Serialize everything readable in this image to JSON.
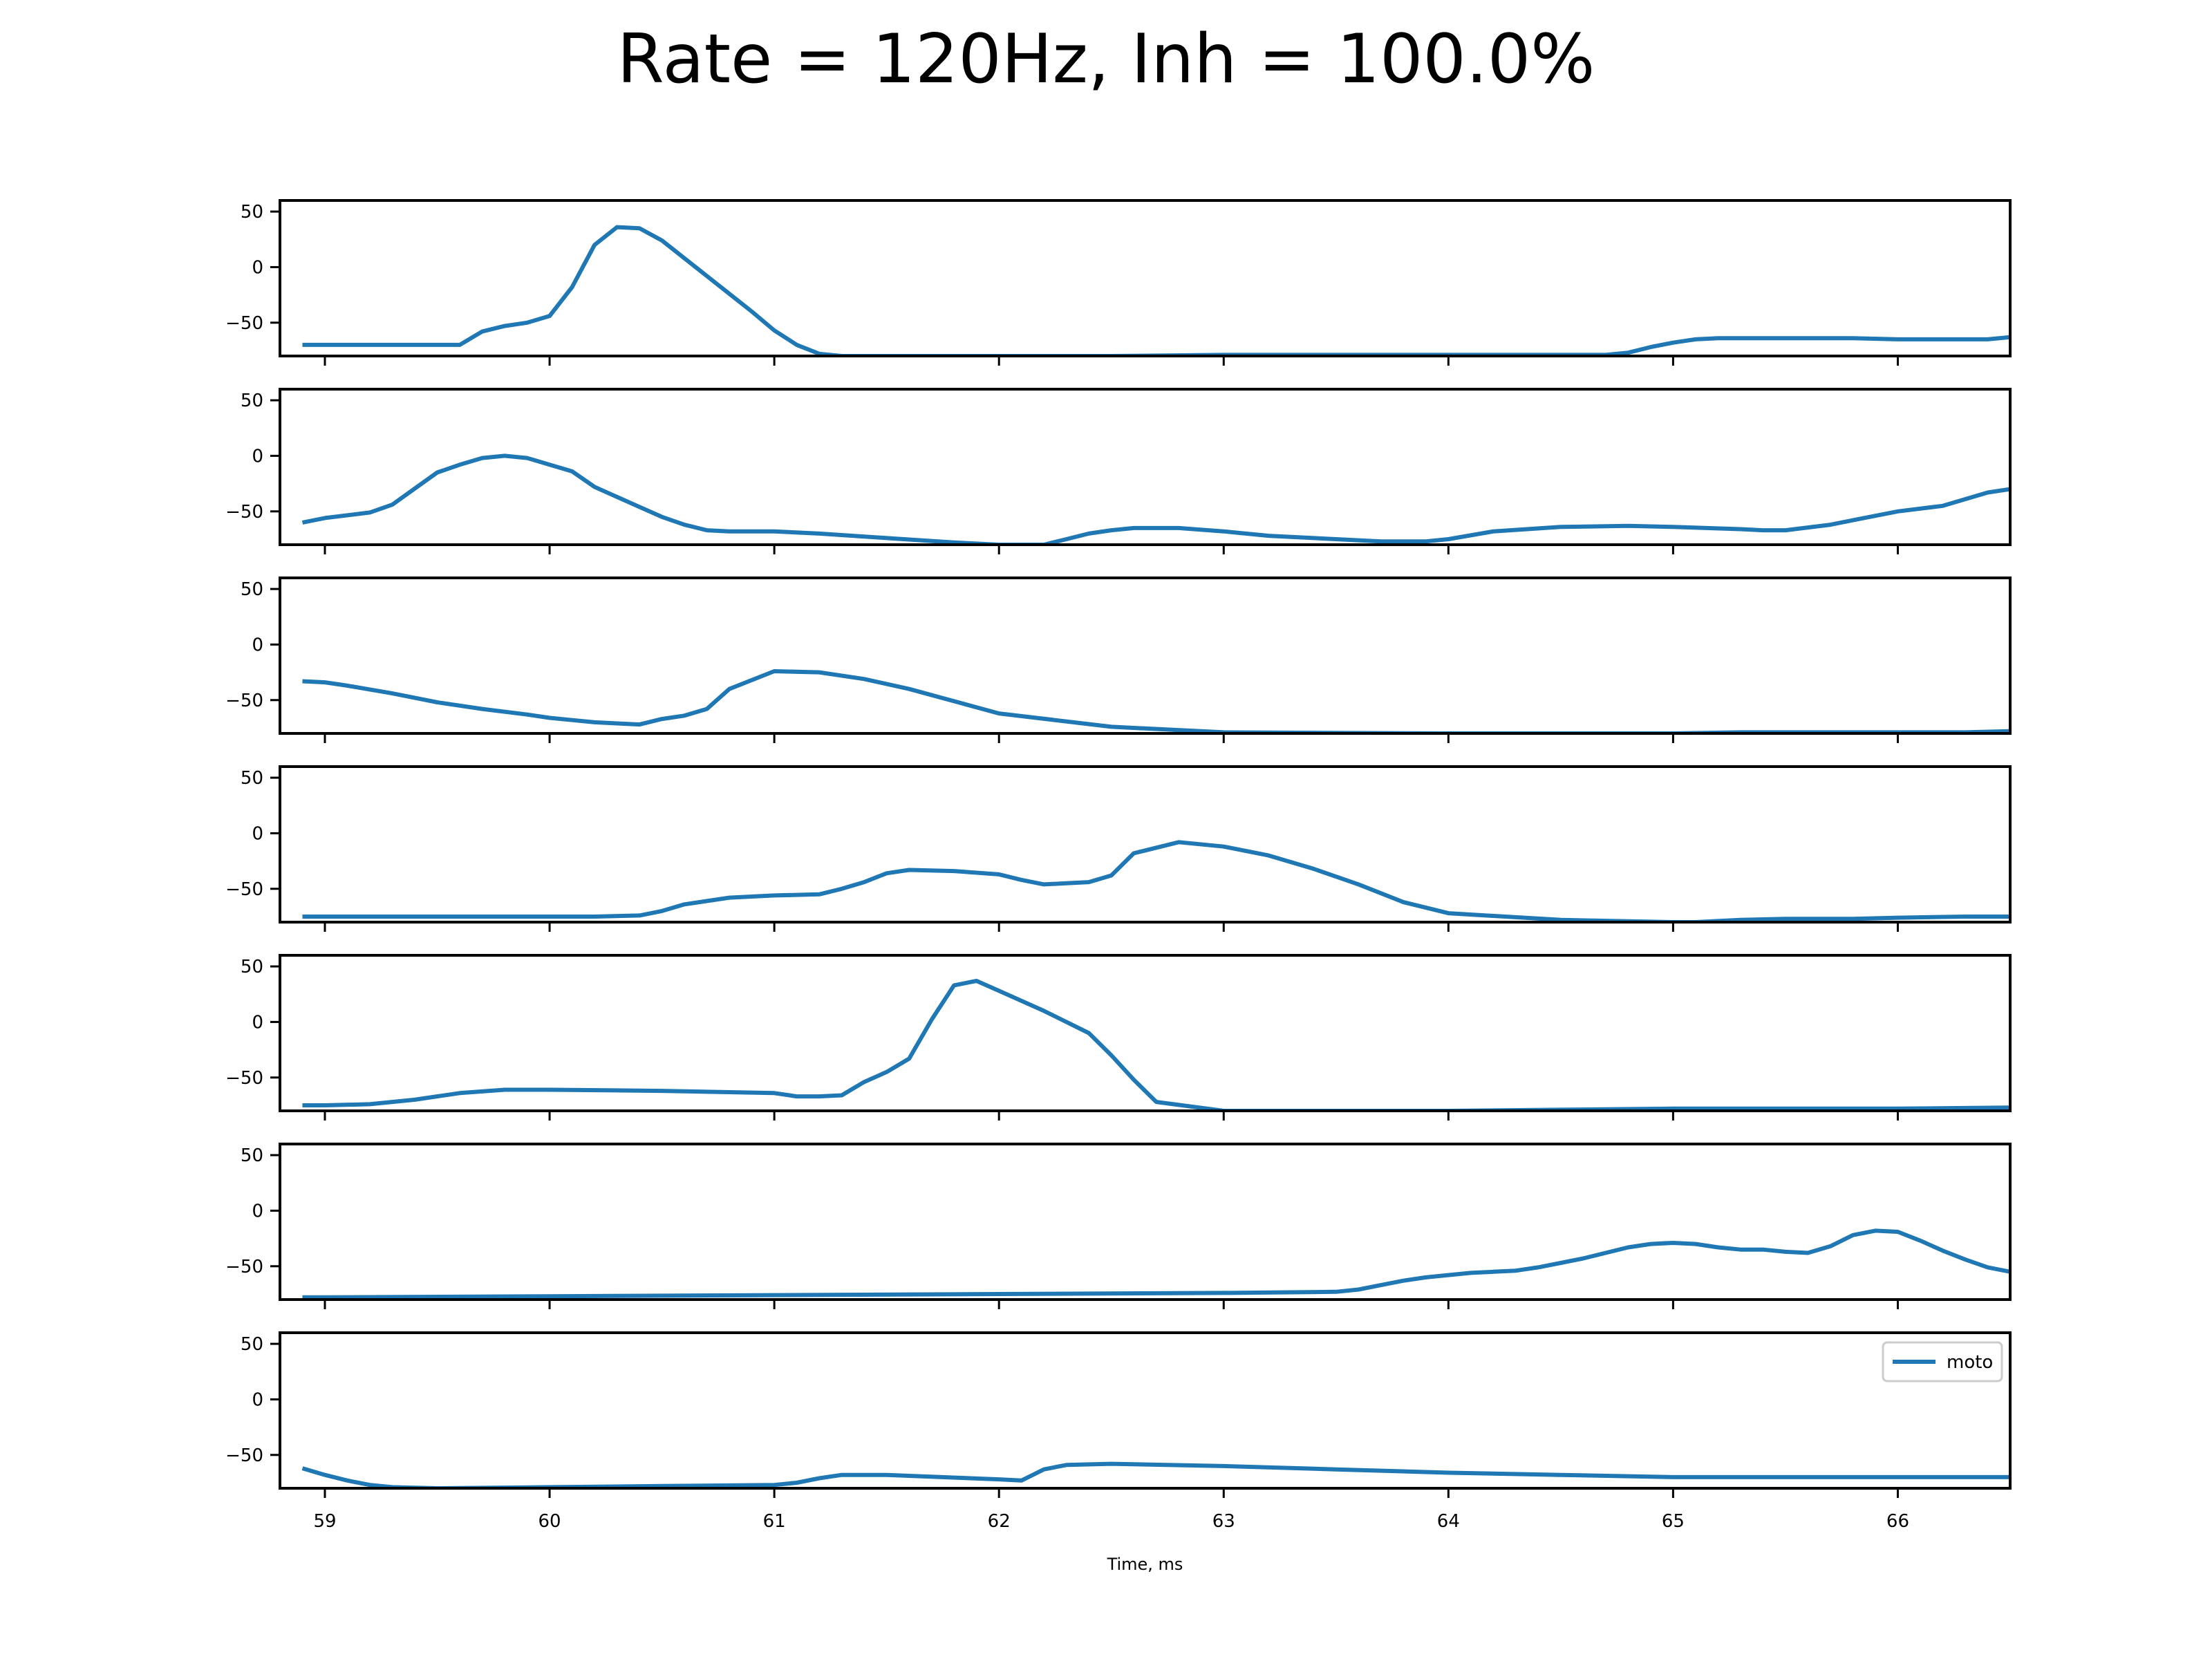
{
  "title": "Rate = 120Hz, Inh = 100.0%",
  "colors": {
    "series": "#1f77b4",
    "axes": "#000000",
    "background": "#ffffff"
  },
  "chart_data": {
    "type": "line",
    "title": "Rate = 120Hz, Inh = 100.0%",
    "xlabel": "Time, ms",
    "ylabel": "",
    "xlim": [
      58.8,
      66.5
    ],
    "ylim": [
      -80,
      60
    ],
    "x_ticks": [
      59,
      60,
      61,
      62,
      63,
      64,
      65,
      66
    ],
    "y_ticks": [
      50,
      0,
      -50
    ],
    "grid": false,
    "legend": {
      "placement": "top-right",
      "entries": [
        "moto"
      ],
      "panel": 7
    },
    "panels": [
      {
        "series": [
          {
            "name": "moto",
            "x": [
              58.9,
              59.2,
              59.5,
              59.6,
              59.7,
              59.8,
              59.9,
              60.0,
              60.1,
              60.2,
              60.3,
              60.4,
              60.5,
              60.6,
              60.7,
              60.8,
              60.9,
              61.0,
              61.1,
              61.2,
              61.3,
              61.5,
              62.0,
              62.5,
              63.0,
              63.5,
              64.0,
              64.5,
              64.7,
              64.8,
              64.9,
              65.0,
              65.1,
              65.2,
              65.3,
              65.5,
              65.8,
              66.0,
              66.2,
              66.4,
              66.5
            ],
            "values": [
              -70,
              -70,
              -70,
              -70,
              -58,
              -53,
              -50,
              -44,
              -18,
              20,
              36,
              35,
              24,
              8,
              -8,
              -24,
              -40,
              -57,
              -70,
              -78,
              -80,
              -80,
              -80,
              -80,
              -79,
              -79,
              -79,
              -79,
              -79,
              -77,
              -72,
              -68,
              -65,
              -64,
              -64,
              -64,
              -64,
              -65,
              -65,
              -65,
              -63
            ]
          }
        ]
      },
      {
        "series": [
          {
            "name": "moto",
            "x": [
              58.9,
              59.0,
              59.2,
              59.3,
              59.5,
              59.6,
              59.7,
              59.8,
              59.9,
              60.0,
              60.1,
              60.2,
              60.3,
              60.4,
              60.5,
              60.6,
              60.7,
              60.8,
              61.0,
              61.2,
              61.5,
              61.8,
              62.0,
              62.2,
              62.3,
              62.4,
              62.5,
              62.6,
              62.8,
              63.0,
              63.2,
              63.5,
              63.6,
              63.7,
              63.8,
              63.9,
              64.0,
              64.2,
              64.5,
              64.8,
              65.0,
              65.3,
              65.4,
              65.5,
              65.7,
              65.8,
              65.9,
              66.0,
              66.2,
              66.3,
              66.4,
              66.5
            ],
            "values": [
              -60,
              -56,
              -51,
              -44,
              -15,
              -8,
              -2,
              0,
              -2,
              -8,
              -14,
              -28,
              -37,
              -46,
              -55,
              -62,
              -67,
              -68,
              -68,
              -70,
              -74,
              -78,
              -80,
              -80,
              -75,
              -70,
              -67,
              -65,
              -65,
              -68,
              -72,
              -75,
              -76,
              -77,
              -77,
              -77,
              -75,
              -68,
              -64,
              -63,
              -64,
              -66,
              -67,
              -67,
              -62,
              -58,
              -54,
              -50,
              -45,
              -39,
              -33,
              -30
            ]
          }
        ]
      },
      {
        "series": [
          {
            "name": "moto",
            "x": [
              58.9,
              59.0,
              59.1,
              59.3,
              59.5,
              59.7,
              59.9,
              60.0,
              60.1,
              60.2,
              60.3,
              60.4,
              60.5,
              60.6,
              60.7,
              60.8,
              61.0,
              61.2,
              61.4,
              61.6,
              61.8,
              62.0,
              62.5,
              63.0,
              64.0,
              65.0,
              65.3,
              65.5,
              65.8,
              66.0,
              66.3,
              66.5
            ],
            "values": [
              -33,
              -34,
              -37,
              -44,
              -52,
              -58,
              -63,
              -66,
              -68,
              -70,
              -71,
              -72,
              -67,
              -64,
              -58,
              -40,
              -24,
              -25,
              -31,
              -40,
              -51,
              -62,
              -74,
              -79,
              -80,
              -80,
              -79,
              -79,
              -79,
              -79,
              -79,
              -78
            ]
          }
        ]
      },
      {
        "series": [
          {
            "name": "moto",
            "x": [
              58.9,
              59.5,
              60.0,
              60.2,
              60.4,
              60.5,
              60.6,
              60.8,
              61.0,
              61.2,
              61.3,
              61.4,
              61.5,
              61.6,
              61.8,
              62.0,
              62.1,
              62.2,
              62.3,
              62.4,
              62.5,
              62.6,
              62.8,
              63.0,
              63.2,
              63.4,
              63.6,
              63.8,
              64.0,
              64.5,
              65.0,
              65.1,
              65.2,
              65.3,
              65.5,
              65.8,
              66.0,
              66.3,
              66.5
            ],
            "values": [
              -75,
              -75,
              -75,
              -75,
              -74,
              -70,
              -64,
              -58,
              -56,
              -55,
              -50,
              -44,
              -36,
              -33,
              -34,
              -37,
              -42,
              -46,
              -45,
              -44,
              -38,
              -18,
              -8,
              -12,
              -20,
              -32,
              -46,
              -62,
              -72,
              -78,
              -80,
              -80,
              -79,
              -78,
              -77,
              -77,
              -76,
              -75,
              -75
            ]
          }
        ]
      },
      {
        "series": [
          {
            "name": "moto",
            "x": [
              58.9,
              59.0,
              59.2,
              59.4,
              59.6,
              59.8,
              60.0,
              60.5,
              61.0,
              61.1,
              61.2,
              61.3,
              61.4,
              61.5,
              61.6,
              61.7,
              61.8,
              61.9,
              62.0,
              62.2,
              62.4,
              62.5,
              62.6,
              62.7,
              63.0,
              63.5,
              64.0,
              64.5,
              65.0,
              65.5,
              66.0,
              66.5
            ],
            "values": [
              -75,
              -75,
              -74,
              -70,
              -64,
              -61,
              -61,
              -62,
              -64,
              -67,
              -67,
              -66,
              -54,
              -45,
              -33,
              2,
              33,
              37,
              28,
              10,
              -10,
              -30,
              -52,
              -72,
              -80,
              -80,
              -80,
              -79,
              -78,
              -78,
              -78,
              -77
            ]
          }
        ]
      },
      {
        "series": [
          {
            "name": "moto",
            "x": [
              58.9,
              59.0,
              60.0,
              61.0,
              62.0,
              63.0,
              63.5,
              63.6,
              63.7,
              63.8,
              63.9,
              64.0,
              64.1,
              64.2,
              64.3,
              64.4,
              64.5,
              64.6,
              64.7,
              64.8,
              64.9,
              65.0,
              65.1,
              65.2,
              65.3,
              65.4,
              65.5,
              65.6,
              65.7,
              65.8,
              65.9,
              66.0,
              66.1,
              66.2,
              66.3,
              66.4,
              66.5
            ],
            "values": [
              -78,
              -78,
              -77,
              -76,
              -75,
              -74,
              -73,
              -71,
              -67,
              -63,
              -60,
              -58,
              -56,
              -55,
              -54,
              -51,
              -47,
              -43,
              -38,
              -33,
              -30,
              -29,
              -30,
              -33,
              -35,
              -35,
              -37,
              -38,
              -32,
              -22,
              -18,
              -19,
              -27,
              -36,
              -44,
              -51,
              -55
            ]
          }
        ]
      },
      {
        "series": [
          {
            "name": "moto",
            "x": [
              58.9,
              59.0,
              59.1,
              59.2,
              59.3,
              59.5,
              60.0,
              60.5,
              61.0,
              61.1,
              61.2,
              61.3,
              61.5,
              62.0,
              62.1,
              62.2,
              62.3,
              62.5,
              63.0,
              63.5,
              64.0,
              64.5,
              65.0,
              65.5,
              66.0,
              66.5
            ],
            "values": [
              -62,
              -68,
              -73,
              -77,
              -79,
              -80,
              -79,
              -78,
              -77,
              -75,
              -71,
              -68,
              -68,
              -72,
              -73,
              -63,
              -59,
              -58,
              -60,
              -63,
              -66,
              -68,
              -70,
              -70,
              -70,
              -70
            ]
          }
        ]
      }
    ]
  }
}
